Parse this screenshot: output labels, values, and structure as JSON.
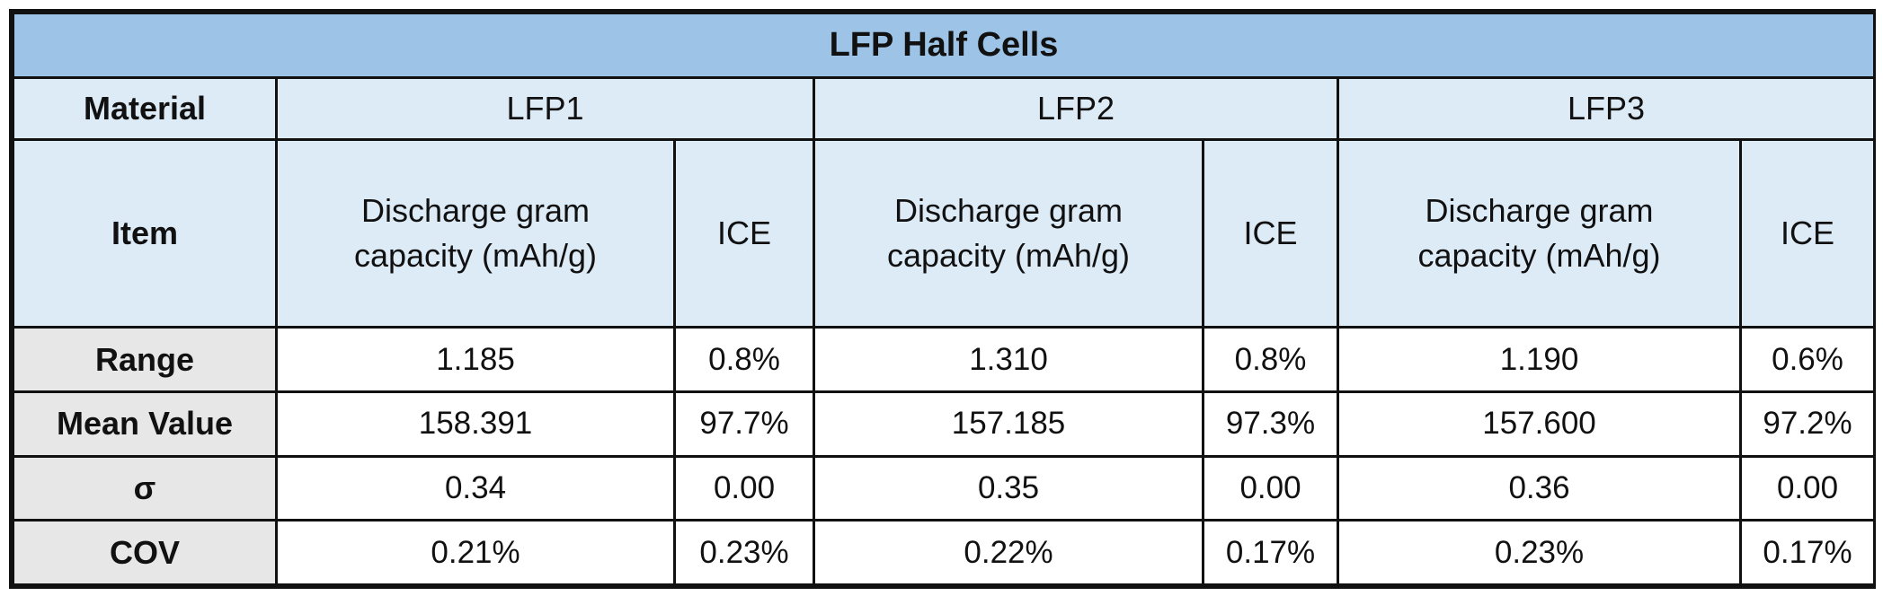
{
  "table": {
    "title": "LFP Half Cells",
    "material_label": "Material",
    "item_label": "Item",
    "materials": [
      "LFP1",
      "LFP2",
      "LFP3"
    ],
    "subheaders": {
      "capacity_line1": "Discharge gram",
      "capacity_line2": "capacity (mAh/g)",
      "ice": "ICE"
    },
    "rows": [
      {
        "label": "Range",
        "lfp1": {
          "capacity": "1.185",
          "ice": "0.8%"
        },
        "lfp2": {
          "capacity": "1.310",
          "ice": "0.8%"
        },
        "lfp3": {
          "capacity": "1.190",
          "ice": "0.6%"
        }
      },
      {
        "label": "Mean Value",
        "lfp1": {
          "capacity": "158.391",
          "ice": "97.7%"
        },
        "lfp2": {
          "capacity": "157.185",
          "ice": "97.3%"
        },
        "lfp3": {
          "capacity": "157.600",
          "ice": "97.2%"
        }
      },
      {
        "label": "σ",
        "lfp1": {
          "capacity": "0.34",
          "ice": "0.00"
        },
        "lfp2": {
          "capacity": "0.35",
          "ice": "0.00"
        },
        "lfp3": {
          "capacity": "0.36",
          "ice": "0.00"
        }
      },
      {
        "label": "COV",
        "lfp1": {
          "capacity": "0.21%",
          "ice": "0.23%"
        },
        "lfp2": {
          "capacity": "0.22%",
          "ice": "0.17%"
        },
        "lfp3": {
          "capacity": "0.23%",
          "ice": "0.17%"
        }
      }
    ]
  },
  "colors": {
    "title_bg": "#9dc3e6",
    "header_bg": "#ddebf7",
    "row_label_bg": "#e7e7e7",
    "border": "#111111"
  }
}
